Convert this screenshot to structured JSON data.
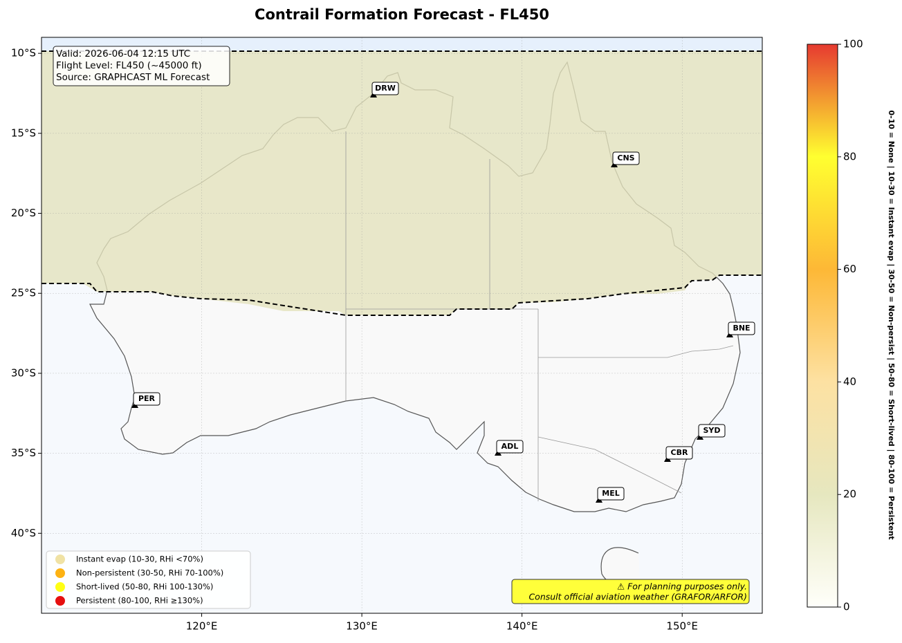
{
  "title": "Contrail Formation Forecast - FL450",
  "info_box": [
    "Valid: 2026-06-04 12:15 UTC",
    "Flight Level: FL450 (~45000 ft)",
    "Source: GRAPHCAST ML Forecast"
  ],
  "map": {
    "lon_range": [
      110,
      155
    ],
    "lat_range": [
      -9,
      -45
    ],
    "lon_ticks": [
      {
        "value": 120,
        "label": "120°E"
      },
      {
        "value": 130,
        "label": "130°E"
      },
      {
        "value": 140,
        "label": "140°E"
      },
      {
        "value": 150,
        "label": "150°E"
      }
    ],
    "lat_ticks": [
      {
        "value": -10,
        "label": "10°S"
      },
      {
        "value": -15,
        "label": "15°S"
      },
      {
        "value": -20,
        "label": "20°S"
      },
      {
        "value": -25,
        "label": "25°S"
      },
      {
        "value": -30,
        "label": "30°S"
      },
      {
        "value": -35,
        "label": "35°S"
      },
      {
        "value": -40,
        "label": "40°S"
      }
    ]
  },
  "stations": [
    "DRW",
    "CNS",
    "BNE",
    "PER",
    "ADL",
    "SYD",
    "CBR",
    "MEL"
  ],
  "legend": [
    {
      "label": "Instant evap (10-30, RHi <70%)",
      "color": "#f0e2a4"
    },
    {
      "label": "Non-persistent (30-50, RHi 70-100%)",
      "color": "#fdb212"
    },
    {
      "label": "Short-lived (50-80, RHi 100-130%)",
      "color": "#ffff14"
    },
    {
      "label": "Persistent (80-100, RHi ≥130%)",
      "color": "#e60f0f"
    }
  ],
  "note": [
    "⚠ For planning purposes only.",
    "Consult official aviation weather (GRAFOR/ARFOR)"
  ],
  "colorbar": {
    "range": [
      0,
      100
    ],
    "ticks": [
      0,
      20,
      40,
      60,
      80,
      100
    ],
    "label": "0-10 = None  |  10-30 = Instant evap  |  30-50 = Non-persist  |  50-80 = Short-lived  |  80-100 = Persistent"
  }
}
